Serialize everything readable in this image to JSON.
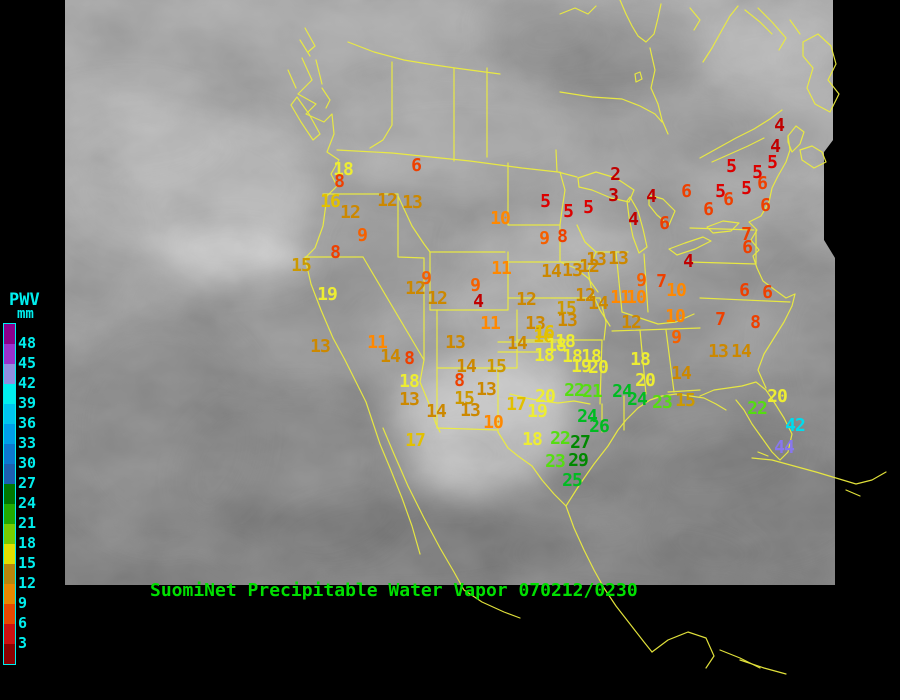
{
  "legend": {
    "title": "PWV",
    "unit": "mm",
    "label_color": "#00EEEE",
    "labels": [
      48,
      45,
      42,
      39,
      36,
      33,
      30,
      27,
      24,
      21,
      18,
      15,
      12,
      9,
      6,
      3
    ],
    "segment_colors": [
      "#8B008B",
      "#9932CC",
      "#8F8FE0",
      "#00EEEE",
      "#00C4EE",
      "#009EE8",
      "#0C78D0",
      "#1C5FB0",
      "#007700",
      "#22AA00",
      "#77CC00",
      "#E0E000",
      "#B8860B",
      "#E88800",
      "#E84800",
      "#CC1010",
      "#8B0000"
    ]
  },
  "footer": {
    "title": "SuomiNet Precipitable Water Vapor 070212/0230",
    "color": "#00DF00"
  },
  "map": {
    "outline_color": "#ECEC3E",
    "value_colors": [
      {
        "max": 4,
        "color": "#C00000"
      },
      {
        "max": 5,
        "color": "#DC0000"
      },
      {
        "max": 8,
        "color": "#EE4000"
      },
      {
        "max": 9,
        "color": "#F56000"
      },
      {
        "max": 11,
        "color": "#FF8800"
      },
      {
        "max": 14,
        "color": "#CC8800"
      },
      {
        "max": 15,
        "color": "#CC9900"
      },
      {
        "max": 17,
        "color": "#E2C000"
      },
      {
        "max": 20,
        "color": "#EDED33"
      },
      {
        "max": 23,
        "color": "#55DD11"
      },
      {
        "max": 26,
        "color": "#00BB22"
      },
      {
        "max": 30,
        "color": "#008800"
      },
      {
        "max": 43,
        "color": "#00DDEE"
      },
      {
        "max": 48,
        "color": "#8877EE"
      }
    ],
    "stations": [
      [
        18,
        343,
        170
      ],
      [
        8,
        339,
        182
      ],
      [
        16,
        330,
        202
      ],
      [
        12,
        350,
        213
      ],
      [
        12,
        387,
        201
      ],
      [
        13,
        412,
        203
      ],
      [
        6,
        416,
        166
      ],
      [
        9,
        362,
        236
      ],
      [
        8,
        335,
        253
      ],
      [
        15,
        301,
        266
      ],
      [
        19,
        327,
        295
      ],
      [
        13,
        320,
        347
      ],
      [
        11,
        377,
        343
      ],
      [
        14,
        390,
        357
      ],
      [
        8,
        409,
        359
      ],
      [
        18,
        409,
        382
      ],
      [
        13,
        409,
        400
      ],
      [
        17,
        415,
        441
      ],
      [
        14,
        436,
        412
      ],
      [
        15,
        464,
        399
      ],
      [
        13,
        470,
        411
      ],
      [
        9,
        426,
        279
      ],
      [
        12,
        415,
        289
      ],
      [
        12,
        437,
        299
      ],
      [
        9,
        475,
        286
      ],
      [
        4,
        478,
        302
      ],
      [
        11,
        490,
        324
      ],
      [
        10,
        500,
        219
      ],
      [
        11,
        501,
        269
      ],
      [
        5,
        545,
        202
      ],
      [
        5,
        568,
        212
      ],
      [
        5,
        588,
        208
      ],
      [
        2,
        615,
        175
      ],
      [
        3,
        613,
        196
      ],
      [
        4,
        651,
        197
      ],
      [
        4,
        633,
        220
      ],
      [
        6,
        664,
        224
      ],
      [
        6,
        686,
        192
      ],
      [
        9,
        544,
        239
      ],
      [
        8,
        562,
        237
      ],
      [
        14,
        551,
        272
      ],
      [
        13,
        572,
        271
      ],
      [
        12,
        589,
        267
      ],
      [
        13,
        596,
        260
      ],
      [
        13,
        618,
        259
      ],
      [
        12,
        585,
        296
      ],
      [
        14,
        598,
        304
      ],
      [
        11,
        620,
        298
      ],
      [
        10,
        636,
        298
      ],
      [
        9,
        641,
        281
      ],
      [
        7,
        661,
        282
      ],
      [
        12,
        631,
        323
      ],
      [
        12,
        526,
        300
      ],
      [
        13,
        535,
        324
      ],
      [
        15,
        566,
        309
      ],
      [
        13,
        567,
        321
      ],
      [
        16,
        544,
        333
      ],
      [
        18,
        565,
        342
      ],
      [
        14,
        517,
        344
      ],
      [
        16,
        543,
        337
      ],
      [
        18,
        556,
        346
      ],
      [
        18,
        544,
        356
      ],
      [
        18,
        572,
        357
      ],
      [
        18,
        591,
        357
      ],
      [
        19,
        581,
        367
      ],
      [
        20,
        598,
        368
      ],
      [
        13,
        455,
        343
      ],
      [
        14,
        466,
        367
      ],
      [
        15,
        496,
        367
      ],
      [
        8,
        459,
        381
      ],
      [
        13,
        486,
        390
      ],
      [
        10,
        493,
        423
      ],
      [
        17,
        516,
        405
      ],
      [
        19,
        537,
        412
      ],
      [
        20,
        545,
        397
      ],
      [
        18,
        532,
        440
      ],
      [
        22,
        574,
        391
      ],
      [
        21,
        592,
        392
      ],
      [
        24,
        587,
        417
      ],
      [
        26,
        599,
        427
      ],
      [
        22,
        560,
        439
      ],
      [
        27,
        580,
        443
      ],
      [
        23,
        555,
        462
      ],
      [
        29,
        578,
        461
      ],
      [
        25,
        572,
        481
      ],
      [
        10,
        676,
        291
      ],
      [
        10,
        675,
        317
      ],
      [
        9,
        676,
        338
      ],
      [
        4,
        688,
        262
      ],
      [
        7,
        720,
        320
      ],
      [
        8,
        755,
        323
      ],
      [
        6,
        744,
        291
      ],
      [
        6,
        767,
        293
      ],
      [
        13,
        718,
        352
      ],
      [
        14,
        741,
        352
      ],
      [
        18,
        640,
        360
      ],
      [
        14,
        681,
        374
      ],
      [
        20,
        645,
        381
      ],
      [
        24,
        622,
        392
      ],
      [
        24,
        637,
        400
      ],
      [
        23,
        662,
        403
      ],
      [
        15,
        685,
        401
      ],
      [
        20,
        777,
        397
      ],
      [
        22,
        757,
        409
      ],
      [
        42,
        795,
        426
      ],
      [
        44,
        784,
        448
      ],
      [
        4,
        779,
        126
      ],
      [
        4,
        775,
        147
      ],
      [
        5,
        772,
        163
      ],
      [
        5,
        731,
        167
      ],
      [
        5,
        757,
        173
      ],
      [
        6,
        762,
        184
      ],
      [
        5,
        746,
        189
      ],
      [
        5,
        720,
        192
      ],
      [
        6,
        728,
        200
      ],
      [
        6,
        708,
        210
      ],
      [
        6,
        765,
        206
      ],
      [
        7,
        746,
        235
      ],
      [
        6,
        747,
        248
      ]
    ]
  }
}
